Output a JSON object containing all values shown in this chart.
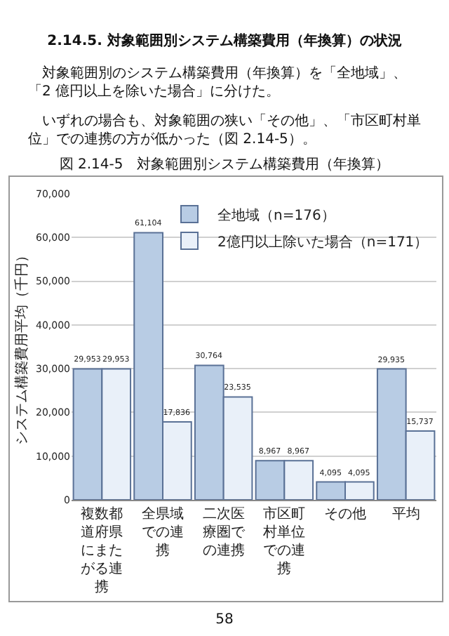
{
  "chart_data": {
    "type": "bar",
    "title": "図 2.14-5　対象範囲別システム構築費用（年換算）",
    "ylabel": "システム構築費用平均（千円）",
    "annotations": [
      "2.14.5. 対象範囲別システム構築費用（年換算）の状況",
      "対象範囲別のシステム構築費用（年換算）を「全地域」、「2 億円以上を除いた場合」に分けた。",
      "いずれの場合も、対象範囲の狭い「その他」、「市区町村単位」での連携の方が低かった（図 2.14-5）。",
      "58"
    ],
    "categories": [
      "複数都道府県にまたがる連携",
      "全県域での連携",
      "二次医療圏での連携",
      "市区町村単位での連携",
      "その他",
      "平均"
    ],
    "series": [
      {
        "name": "全地域（n=176）",
        "color": "#b8cce4",
        "values": [
          29953,
          61104,
          30764,
          8967,
          4095,
          29935
        ],
        "value_labels": [
          "29,953",
          "61,104",
          "30,764",
          "8,967",
          "4,095",
          "29,935"
        ]
      },
      {
        "name": "2億円以上除いた場合（n=171）",
        "color": "#e9f0f9",
        "values": [
          29953,
          17836,
          23535,
          8967,
          4095,
          15737
        ],
        "value_labels": [
          "29,953",
          "17,836",
          "23,535",
          "8,967",
          "4,095",
          "15,737"
        ]
      }
    ],
    "ylim": [
      0,
      70000
    ],
    "yticks": [
      0,
      {
        "value": 10000,
        "label": "10,000"
      },
      {
        "value": 20000,
        "label": "20,000"
      },
      {
        "value": 30000,
        "label": "30,000"
      },
      {
        "value": 40000,
        "label": "40,000"
      },
      {
        "value": 50000,
        "label": "50,000"
      },
      {
        "value": 60000,
        "label": "60,000"
      },
      {
        "value": 70000,
        "label": "70,000"
      }
    ],
    "grid": "y",
    "legend": "top right"
  }
}
